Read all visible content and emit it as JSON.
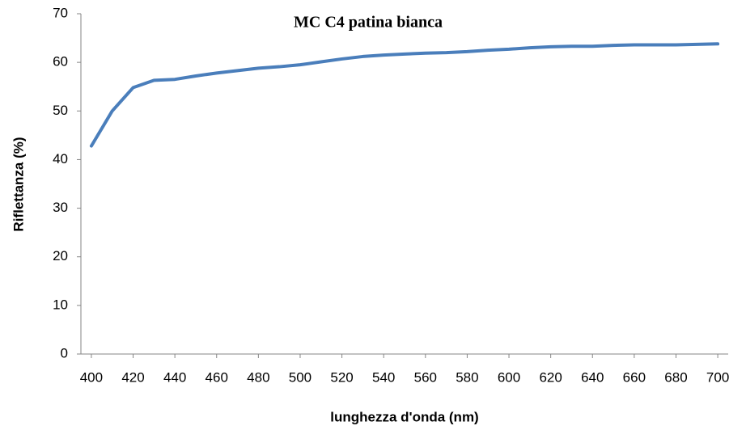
{
  "chart_data": {
    "type": "line",
    "title": "MC C4 patina bianca",
    "x_label": "lunghezza d'onda (nm)",
    "y_label": "Riflettanza (%)",
    "x": [
      400,
      410,
      420,
      430,
      440,
      450,
      460,
      470,
      480,
      490,
      500,
      510,
      520,
      530,
      540,
      550,
      560,
      570,
      580,
      590,
      600,
      610,
      620,
      630,
      640,
      650,
      660,
      670,
      680,
      690,
      700
    ],
    "values": [
      42.8,
      50,
      54.8,
      56.3,
      56.5,
      57.2,
      57.8,
      58.3,
      58.8,
      59.1,
      59.5,
      60.1,
      60.7,
      61.2,
      61.5,
      61.7,
      61.9,
      62.0,
      62.2,
      62.5,
      62.7,
      63.0,
      63.2,
      63.3,
      63.3,
      63.5,
      63.6,
      63.6,
      63.6,
      63.7,
      63.8
    ],
    "color": "#4a7ebb",
    "xlim": [
      395,
      705
    ],
    "xticks": [
      400,
      420,
      440,
      460,
      480,
      500,
      520,
      540,
      560,
      580,
      600,
      620,
      640,
      660,
      680,
      700
    ],
    "ylim": [
      0,
      70
    ],
    "yticks": [
      0,
      10,
      20,
      30,
      40,
      50,
      60,
      70
    ],
    "grid": false
  }
}
